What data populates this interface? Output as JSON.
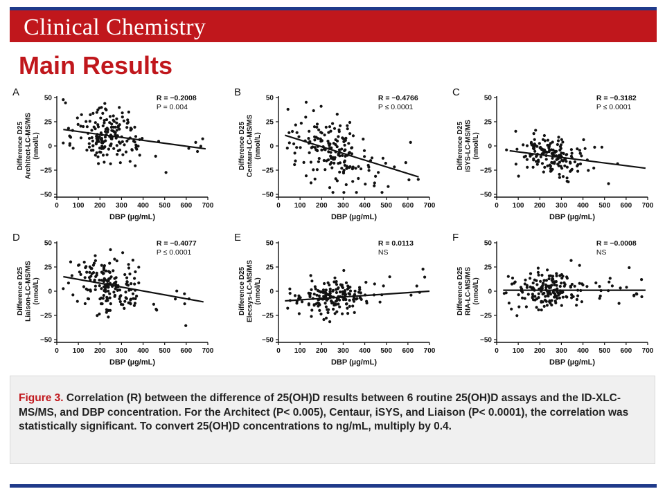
{
  "header": {
    "journal_title": "Clinical Chemistry",
    "slide_title": "Main Results"
  },
  "caption": {
    "lead": "Figure 3.",
    "body": "Correlation (R) between the difference of 25(OH)D results between 6 routine  25(OH)D assays and the ID-XLC-MS/MS, and DBP concentration. For the Architect (P< 0.005), Centaur, iSYS, and Liaison (P< 0.0001), the correlation was statistically significant. To convert 25(OH)D concentrations to ng/mL, multiply by 0.4."
  },
  "chart_data": [
    {
      "type": "scatter",
      "panel_label": "A",
      "ylabel": "Difference D25\nArchitect-LC-MS/MS\n(nmol/L)",
      "xlabel": "DBP (µg/mL)",
      "xlim": [
        0,
        700
      ],
      "ylim": [
        -50,
        50
      ],
      "xticks": [
        0,
        100,
        200,
        300,
        400,
        500,
        600,
        700
      ],
      "yticks": [
        50,
        25,
        0,
        -25,
        -50
      ],
      "ytick_labels": [
        "50",
        "25",
        "0",
        "−25",
        "−50"
      ],
      "r_label": "R = −0.2008",
      "p_label": "P = 0.004",
      "fit_line": [
        [
          30,
          17
        ],
        [
          690,
          -3
        ]
      ],
      "point_seed": 11,
      "point_count": 180,
      "x_center": 240,
      "x_spread": 130,
      "y_noise": 14,
      "point_color": "#111111"
    },
    {
      "type": "scatter",
      "panel_label": "B",
      "ylabel": "Difference D25\nCentaur-LC-MS/MS\n(nmol/L)",
      "xlabel": "DBP (µg/mL)",
      "xlim": [
        0,
        700
      ],
      "ylim": [
        -50,
        50
      ],
      "xticks": [
        0,
        100,
        200,
        300,
        400,
        500,
        600,
        700
      ],
      "yticks": [
        50,
        25,
        0,
        -25,
        -50
      ],
      "ytick_labels": [
        "50",
        "25",
        "0",
        "−25",
        "−50"
      ],
      "r_label": "R = −0.4766",
      "p_label": "P ≤ 0.0001",
      "fit_line": [
        [
          30,
          11
        ],
        [
          650,
          -32
        ]
      ],
      "point_seed": 23,
      "point_count": 180,
      "x_center": 240,
      "x_spread": 130,
      "y_noise": 16,
      "point_color": "#111111"
    },
    {
      "type": "scatter",
      "panel_label": "C",
      "ylabel": "Difference D25\niSYS-LC-MS/MS\n(nmol/L)",
      "xlabel": "DBP (µg/mL)",
      "xlim": [
        0,
        700
      ],
      "ylim": [
        -50,
        50
      ],
      "xticks": [
        0,
        100,
        200,
        300,
        400,
        500,
        600,
        700
      ],
      "yticks": [
        50,
        25,
        0,
        -25,
        -50
      ],
      "ytick_labels": [
        "50",
        "25",
        "0",
        "−25",
        "−50"
      ],
      "r_label": "R = −0.3182",
      "p_label": "P ≤ 0.0001",
      "fit_line": [
        [
          60,
          -5
        ],
        [
          690,
          -23
        ]
      ],
      "point_seed": 37,
      "point_count": 170,
      "x_center": 260,
      "x_spread": 120,
      "y_noise": 10,
      "point_color": "#111111"
    },
    {
      "type": "scatter",
      "panel_label": "D",
      "ylabel": "Difference D25\nLiaison-LC-MS/MS\n(nmol/L)",
      "xlabel": "DBP (µg/mL)",
      "xlim": [
        0,
        700
      ],
      "ylim": [
        -50,
        50
      ],
      "xticks": [
        0,
        100,
        200,
        300,
        400,
        500,
        600,
        700
      ],
      "yticks": [
        50,
        25,
        0,
        -25,
        -50
      ],
      "ytick_labels": [
        "50",
        "25",
        "0",
        "−25",
        "−50"
      ],
      "r_label": "R = −0.4077",
      "p_label": "P ≤ 0.0001",
      "fit_line": [
        [
          30,
          15
        ],
        [
          680,
          -11
        ]
      ],
      "point_seed": 41,
      "point_count": 180,
      "x_center": 240,
      "x_spread": 130,
      "y_noise": 14,
      "point_color": "#111111"
    },
    {
      "type": "scatter",
      "panel_label": "E",
      "ylabel": "Difference D25\nElecsys-LC-MS/MS\n(nmol/L)",
      "xlabel": "DBP (µg/mL)",
      "xlim": [
        0,
        700
      ],
      "ylim": [
        -50,
        50
      ],
      "xticks": [
        0,
        100,
        200,
        300,
        400,
        500,
        600,
        700
      ],
      "yticks": [
        50,
        25,
        0,
        -25,
        -50
      ],
      "ytick_labels": [
        "50",
        "25",
        "0",
        "−25",
        "−50"
      ],
      "r_label": "R = 0.0113",
      "p_label": "NS",
      "fit_line": [
        [
          30,
          -10
        ],
        [
          700,
          0
        ]
      ],
      "point_seed": 53,
      "point_count": 180,
      "x_center": 250,
      "x_spread": 130,
      "y_noise": 10,
      "point_color": "#111111"
    },
    {
      "type": "scatter",
      "panel_label": "F",
      "ylabel": "Difference D25\nRIA-LC-MS/MS\n(nmol/L)",
      "xlabel": "DBP (µg/mL)",
      "xlim": [
        0,
        700
      ],
      "ylim": [
        -50,
        50
      ],
      "xticks": [
        0,
        100,
        200,
        300,
        400,
        500,
        600,
        700
      ],
      "yticks": [
        50,
        25,
        0,
        -25,
        -50
      ],
      "ytick_labels": [
        "50",
        "25",
        "0",
        "−25",
        "−50"
      ],
      "r_label": "R = −0.0008",
      "p_label": "NS",
      "fit_line": [
        [
          30,
          1
        ],
        [
          690,
          1
        ]
      ],
      "point_seed": 67,
      "point_count": 190,
      "x_center": 230,
      "x_spread": 120,
      "y_noise": 9,
      "point_color": "#111111"
    }
  ],
  "colors": {
    "brand_red": "#c0171c",
    "brand_blue": "#1f3a8a",
    "caption_bg": "#f0f0f0"
  }
}
